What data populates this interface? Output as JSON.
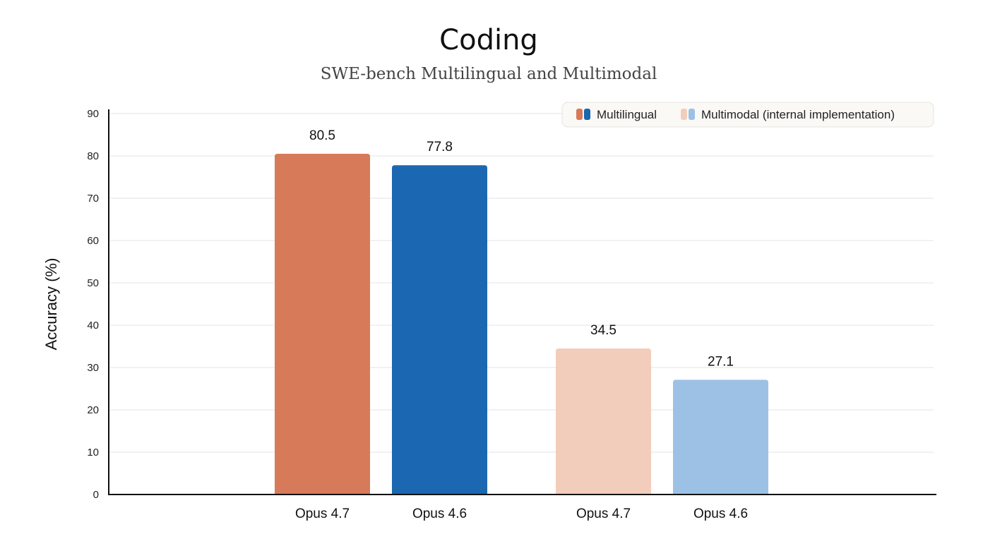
{
  "chart_data": {
    "type": "bar",
    "title": "Coding",
    "subtitle": "SWE-bench Multilingual and Multimodal",
    "xlabel": "",
    "ylabel": "Accuracy (%)",
    "ylim": [
      0,
      90
    ],
    "yticks": [
      0,
      10,
      20,
      30,
      40,
      50,
      60,
      70,
      80,
      90
    ],
    "grid": true,
    "legend_position": "top-right",
    "groups": [
      {
        "name": "Multilingual",
        "colors": [
          "#D77A59",
          "#1B67B1"
        ],
        "bars": [
          {
            "category": "Opus 4.7",
            "value": 80.5,
            "color": "#D77A59"
          },
          {
            "category": "Opus 4.6",
            "value": 77.8,
            "color": "#1B67B1"
          }
        ]
      },
      {
        "name": "Multimodal (internal implementation)",
        "colors": [
          "#F3CDBB",
          "#9DC1E5"
        ],
        "bars": [
          {
            "category": "Opus 4.7",
            "value": 34.5,
            "color": "#F3CDBB"
          },
          {
            "category": "Opus 4.6",
            "value": 27.1,
            "color": "#9DC1E5"
          }
        ]
      }
    ]
  }
}
